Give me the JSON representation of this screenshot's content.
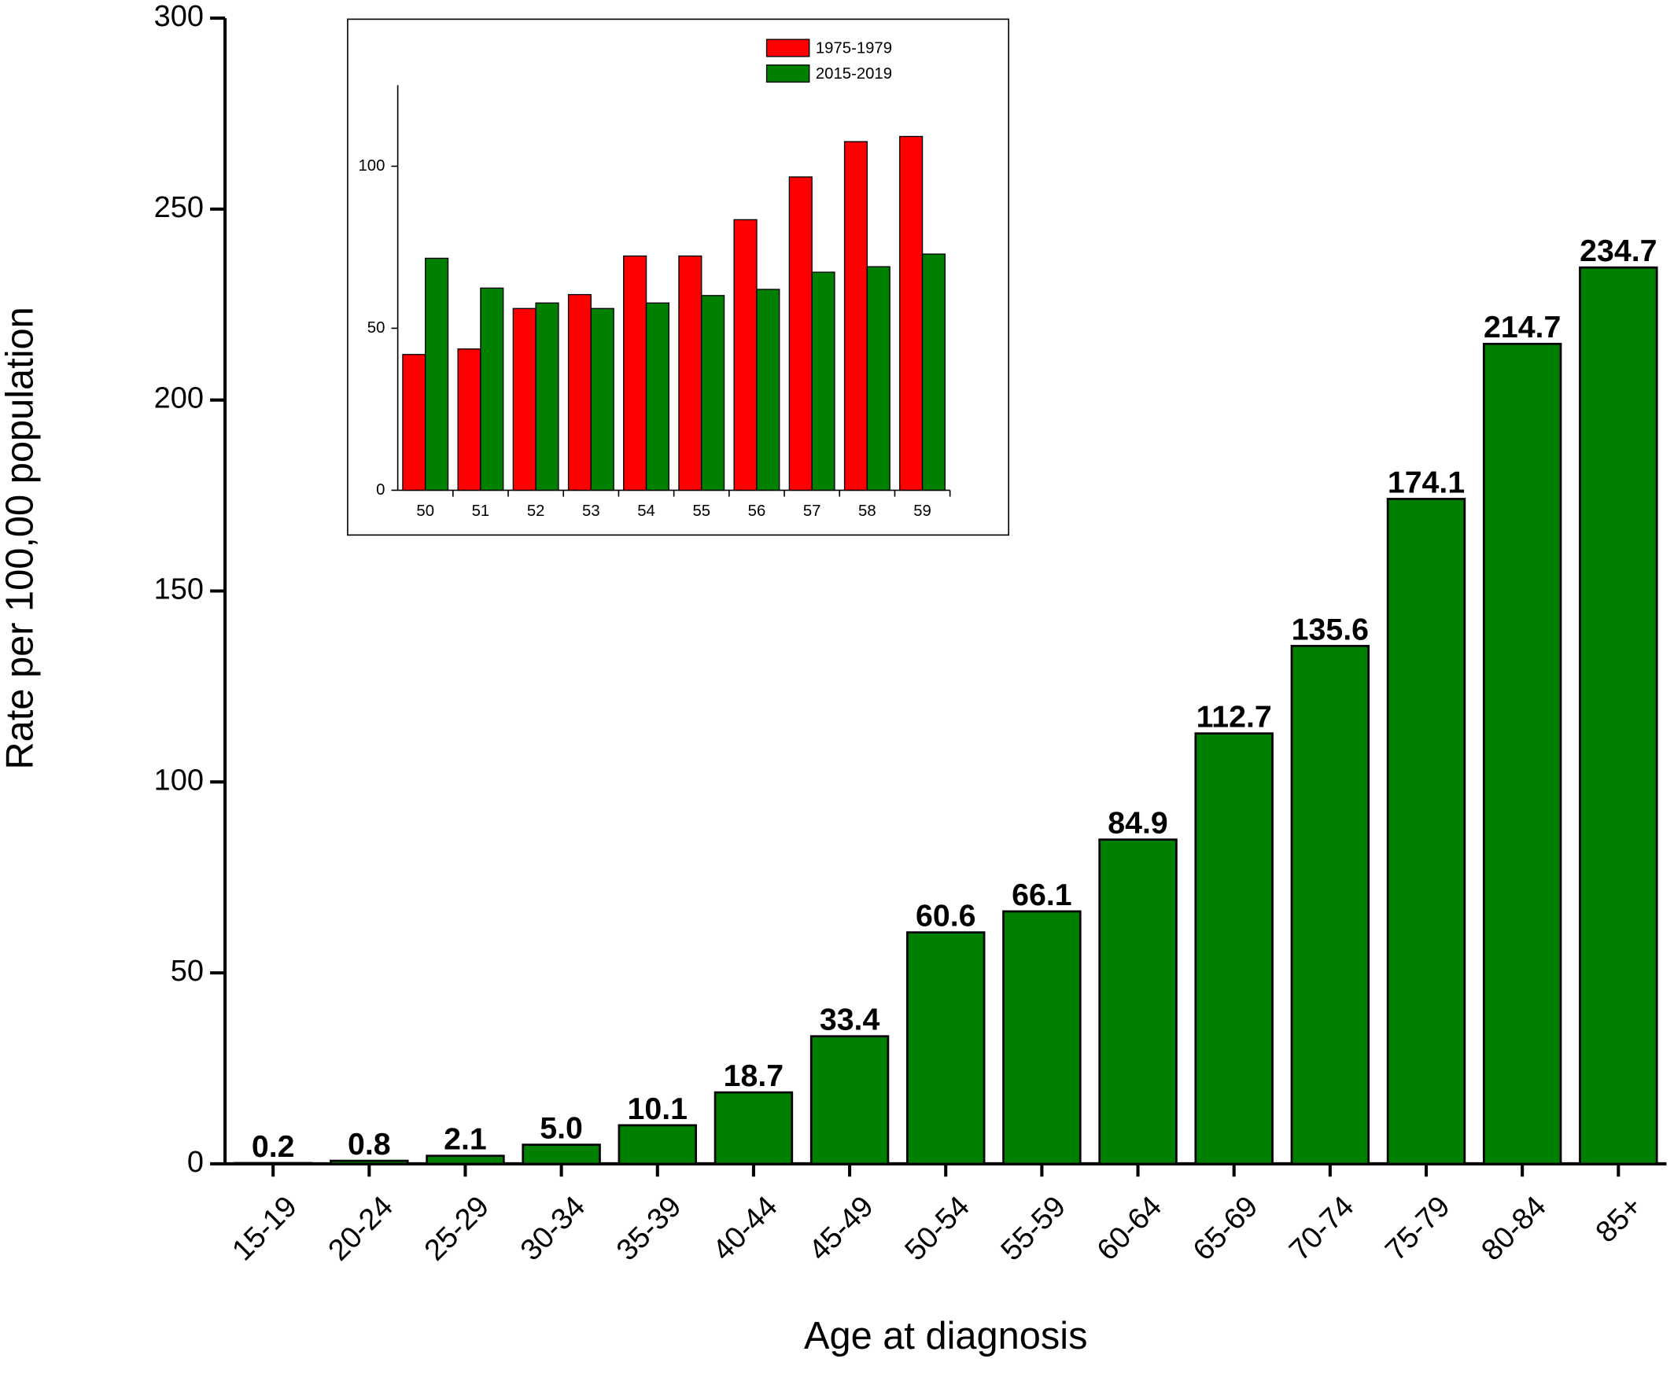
{
  "chart_data": [
    {
      "type": "bar",
      "x_label": "Age at diagnosis",
      "y_label": "Rate per 100,00 population",
      "categories": [
        "15-19",
        "20-24",
        "25-29",
        "30-34",
        "35-39",
        "40-44",
        "45-49",
        "50-54",
        "55-59",
        "60-64",
        "65-69",
        "70-74",
        "75-79",
        "80-84",
        "85+"
      ],
      "values": [
        0.2,
        0.8,
        2.1,
        5.0,
        10.1,
        18.7,
        33.4,
        60.6,
        66.1,
        84.9,
        112.7,
        135.6,
        174.1,
        214.7,
        234.7
      ],
      "value_labels": [
        "0.2",
        "0.8",
        "2.1",
        "5.0",
        "10.1",
        "18.7",
        "33.4",
        "60.6",
        "66.1",
        "84.9",
        "112.7",
        "135.6",
        "174.1",
        "214.7",
        "234.7"
      ],
      "color": "#008000",
      "ylim": [
        0,
        300
      ],
      "yticks": [
        0,
        50,
        100,
        150,
        200,
        250,
        300
      ]
    },
    {
      "type": "bar",
      "categories": [
        "50",
        "51",
        "52",
        "53",
        "54",
        "55",
        "56",
        "57",
        "58",
        "59"
      ],
      "series": [
        {
          "name": "1975-1979",
          "color": "#ff0000",
          "values": [
            41.9,
            43.6,
            56.1,
            60.4,
            72.3,
            72.3,
            83.5,
            96.7,
            107.6,
            109.2
          ]
        },
        {
          "name": "2015-2019",
          "color": "#008000",
          "values": [
            71.6,
            62.4,
            57.8,
            56.1,
            57.8,
            60.1,
            62.0,
            67.3,
            69.0,
            72.9
          ]
        }
      ],
      "ylim": [
        0,
        125
      ],
      "yticks": [
        0,
        50,
        100
      ],
      "legend": "top-right"
    }
  ]
}
